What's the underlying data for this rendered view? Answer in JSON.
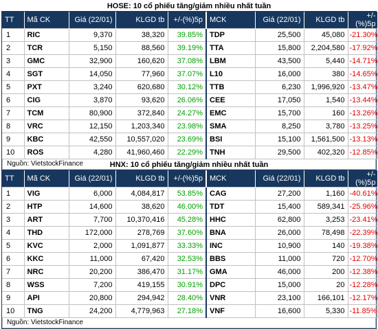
{
  "hose": {
    "title": "HOSE: 10 cổ phiếu tăng/giảm nhiều nhất tuần",
    "headers": [
      "TT",
      "Mã CK",
      "Giá (22/01)",
      "KLGD tb",
      "+/-(%)5p",
      "MCK",
      "Giá (22/01)",
      "KLGD tb",
      "+/-(%)5p"
    ],
    "rows": [
      {
        "tt": "1",
        "up_code": "RIC",
        "up_price": "9,370",
        "up_vol": "38,320",
        "up_pct": "39.85%",
        "dn_code": "TDP",
        "dn_price": "25,500",
        "dn_vol": "45,080",
        "dn_pct": "-21.30%"
      },
      {
        "tt": "2",
        "up_code": "TCR",
        "up_price": "5,150",
        "up_vol": "88,560",
        "up_pct": "39.19%",
        "dn_code": "TTA",
        "dn_price": "15,800",
        "dn_vol": "2,204,580",
        "dn_pct": "-17.92%"
      },
      {
        "tt": "3",
        "up_code": "GMC",
        "up_price": "32,900",
        "up_vol": "160,620",
        "up_pct": "37.08%",
        "dn_code": "LBM",
        "dn_price": "43,500",
        "dn_vol": "5,440",
        "dn_pct": "-14.71%"
      },
      {
        "tt": "4",
        "up_code": "SGT",
        "up_price": "14,050",
        "up_vol": "77,960",
        "up_pct": "37.07%",
        "dn_code": "L10",
        "dn_price": "16,000",
        "dn_vol": "380",
        "dn_pct": "-14.65%"
      },
      {
        "tt": "5",
        "up_code": "PXT",
        "up_price": "3,240",
        "up_vol": "620,680",
        "up_pct": "30.12%",
        "dn_code": "TTB",
        "dn_price": "6,230",
        "dn_vol": "1,996,920",
        "dn_pct": "-13.47%"
      },
      {
        "tt": "6",
        "up_code": "CIG",
        "up_price": "3,870",
        "up_vol": "93,620",
        "up_pct": "26.06%",
        "dn_code": "CEE",
        "dn_price": "17,050",
        "dn_vol": "1,540",
        "dn_pct": "-13.44%"
      },
      {
        "tt": "7",
        "up_code": "TCM",
        "up_price": "80,900",
        "up_vol": "372,840",
        "up_pct": "24.27%",
        "dn_code": "EMC",
        "dn_price": "15,700",
        "dn_vol": "160",
        "dn_pct": "-13.26%"
      },
      {
        "tt": "8",
        "up_code": "VRC",
        "up_price": "12,150",
        "up_vol": "1,203,340",
        "up_pct": "23.98%",
        "dn_code": "SMA",
        "dn_price": "8,250",
        "dn_vol": "3,780",
        "dn_pct": "-13.25%"
      },
      {
        "tt": "9",
        "up_code": "KBC",
        "up_price": "42,550",
        "up_vol": "10,557,020",
        "up_pct": "23.69%",
        "dn_code": "BSI",
        "dn_price": "15,100",
        "dn_vol": "1,561,500",
        "dn_pct": "-13.13%"
      },
      {
        "tt": "10",
        "up_code": "ROS",
        "up_price": "4,280",
        "up_vol": "41,960,460",
        "up_pct": "22.29%",
        "dn_code": "TNH",
        "dn_price": "29,500",
        "dn_vol": "402,320",
        "dn_pct": "-12.85%"
      }
    ],
    "source": "Nguồn: VietstockFinance"
  },
  "hnx": {
    "title": "HNX: 10 cổ phiếu tăng/giảm nhiều nhất tuần",
    "headers": [
      "TT",
      "Mã CK",
      "Giá (22/01)",
      "KLGD tb",
      "+/-(%)5p",
      "MCK",
      "Giá (22/01)",
      "KLGD tb",
      "+/-(%)5p"
    ],
    "rows": [
      {
        "tt": "1",
        "up_code": "VIG",
        "up_price": "6,000",
        "up_vol": "4,084,817",
        "up_pct": "53.85%",
        "dn_code": "CAG",
        "dn_price": "27,200",
        "dn_vol": "1,160",
        "dn_pct": "-40.61%"
      },
      {
        "tt": "2",
        "up_code": "HTP",
        "up_price": "14,600",
        "up_vol": "38,620",
        "up_pct": "46.00%",
        "dn_code": "TDT",
        "dn_price": "15,400",
        "dn_vol": "589,341",
        "dn_pct": "-25.96%"
      },
      {
        "tt": "3",
        "up_code": "ART",
        "up_price": "7,700",
        "up_vol": "10,370,416",
        "up_pct": "45.28%",
        "dn_code": "HHC",
        "dn_price": "62,800",
        "dn_vol": "3,253",
        "dn_pct": "-23.41%"
      },
      {
        "tt": "4",
        "up_code": "THD",
        "up_price": "172,000",
        "up_vol": "278,769",
        "up_pct": "37.60%",
        "dn_code": "BNA",
        "dn_price": "26,000",
        "dn_vol": "78,498",
        "dn_pct": "-22.39%"
      },
      {
        "tt": "5",
        "up_code": "KVC",
        "up_price": "2,000",
        "up_vol": "1,091,877",
        "up_pct": "33.33%",
        "dn_code": "INC",
        "dn_price": "10,900",
        "dn_vol": "140",
        "dn_pct": "-19.38%"
      },
      {
        "tt": "6",
        "up_code": "KKC",
        "up_price": "11,000",
        "up_vol": "67,420",
        "up_pct": "32.53%",
        "dn_code": "BBS",
        "dn_price": "11,000",
        "dn_vol": "720",
        "dn_pct": "-12.70%"
      },
      {
        "tt": "7",
        "up_code": "NRC",
        "up_price": "20,200",
        "up_vol": "386,470",
        "up_pct": "31.17%",
        "dn_code": "GMA",
        "dn_price": "46,000",
        "dn_vol": "200",
        "dn_pct": "-12.38%"
      },
      {
        "tt": "8",
        "up_code": "WSS",
        "up_price": "7,200",
        "up_vol": "419,155",
        "up_pct": "30.91%",
        "dn_code": "DPC",
        "dn_price": "15,000",
        "dn_vol": "20",
        "dn_pct": "-12.28%"
      },
      {
        "tt": "9",
        "up_code": "API",
        "up_price": "20,800",
        "up_vol": "294,942",
        "up_pct": "28.40%",
        "dn_code": "VNR",
        "dn_price": "23,100",
        "dn_vol": "166,101",
        "dn_pct": "-12.17%"
      },
      {
        "tt": "10",
        "up_code": "TNG",
        "up_price": "24,200",
        "up_vol": "4,779,963",
        "up_pct": "27.18%",
        "dn_code": "VNF",
        "dn_price": "16,600",
        "dn_vol": "5,330",
        "dn_pct": "-11.85%"
      }
    ],
    "source": "Nguồn: VietstockFinance"
  },
  "colors": {
    "header_bg": "#17375e",
    "up": "#00a000",
    "down": "#e00000"
  }
}
